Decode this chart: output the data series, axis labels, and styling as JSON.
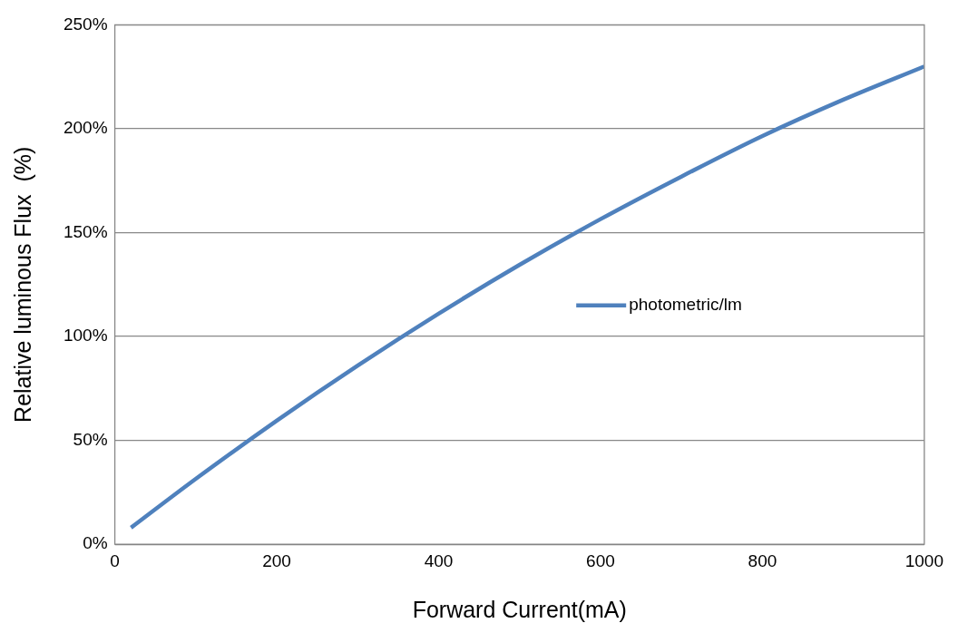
{
  "chart_data": {
    "type": "line",
    "xlabel": "Forward Current(mA)",
    "ylabel": "Relative luminous Flux  (%)",
    "xlim": [
      0,
      1000
    ],
    "xticks": [
      0,
      200,
      400,
      600,
      800,
      1000
    ],
    "ylim": [
      0,
      250
    ],
    "yticks": [
      {
        "value": 0,
        "label": "0%"
      },
      {
        "value": 50,
        "label": "50%"
      },
      {
        "value": 100,
        "label": "100%"
      },
      {
        "value": 150,
        "label": "150%"
      },
      {
        "value": 200,
        "label": "200%"
      },
      {
        "value": 250,
        "label": "250%"
      }
    ],
    "grid": "y",
    "legend": "right",
    "marker": "none",
    "line_style": "solid",
    "series": [
      {
        "name": "photometric/lm",
        "color": "#4f81bd",
        "x": [
          20,
          100,
          200,
          300,
          400,
          500,
          600,
          700,
          800,
          900,
          1000
        ],
        "values": [
          8,
          31.5,
          59.5,
          86,
          111,
          134.5,
          156.5,
          177,
          196.5,
          214,
          230
        ]
      }
    ]
  }
}
